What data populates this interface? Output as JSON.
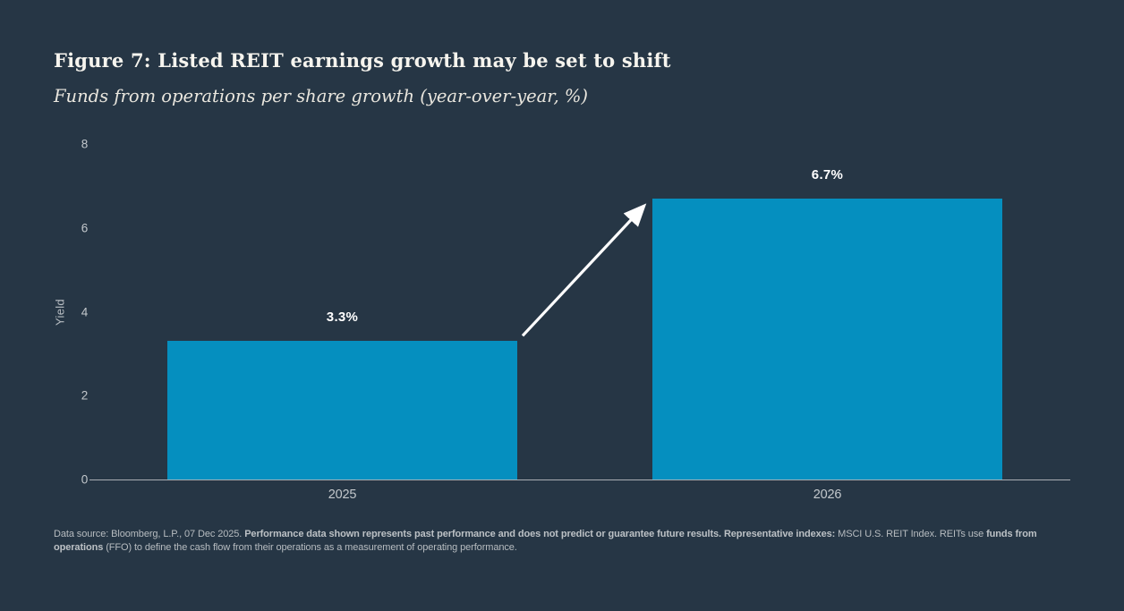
{
  "chart_data": {
    "type": "bar",
    "title": "Figure 7: Listed REIT earnings growth may be set to shift",
    "subtitle": "Funds from operations per share growth (year-over-year, %)",
    "categories": [
      "2025",
      "2026"
    ],
    "values": [
      3.3,
      6.7
    ],
    "value_labels": [
      "3.3%",
      "6.7%"
    ],
    "ylabel": "Yield",
    "xlabel": "",
    "ylim": [
      0,
      8
    ],
    "yticks": [
      0,
      2,
      4,
      6,
      8
    ],
    "grid": false,
    "legend": false,
    "annotations": [
      "white arrow pointing from top of 2025 bar to top of 2026 bar"
    ]
  },
  "colors": {
    "background": "#263645",
    "bar": "#058FBF",
    "title_text": "#f6f4ee",
    "subtitle_text": "#e9e6de",
    "axis_text": "#c3c8cc",
    "baseline": "#a9aeb3",
    "value_label_text": "#ffffff",
    "arrow": "#ffffff",
    "footer_text": "#b7bcc0"
  },
  "footer": {
    "segments": [
      {
        "text": "Data source: Bloomberg, L.P., 07 Dec 2025. ",
        "bold": false
      },
      {
        "text": "Performance data shown represents past performance and does not predict or guarantee future results. Representative indexes:",
        "bold": true
      },
      {
        "text": " MSCI U.S. REIT Index. REITs use ",
        "bold": false
      },
      {
        "text": "funds from operations",
        "bold": true
      },
      {
        "text": " (FFO) to define the cash flow from their operations as a measurement of operating performance.",
        "bold": false
      }
    ]
  }
}
